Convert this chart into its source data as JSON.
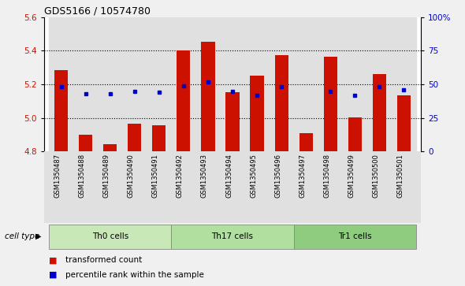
{
  "title": "GDS5166 / 10574780",
  "samples": [
    "GSM1350487",
    "GSM1350488",
    "GSM1350489",
    "GSM1350490",
    "GSM1350491",
    "GSM1350492",
    "GSM1350493",
    "GSM1350494",
    "GSM1350495",
    "GSM1350496",
    "GSM1350497",
    "GSM1350498",
    "GSM1350499",
    "GSM1350500",
    "GSM1350501"
  ],
  "bar_values": [
    5.285,
    4.9,
    4.845,
    4.965,
    4.955,
    5.4,
    5.455,
    5.155,
    5.25,
    5.375,
    4.91,
    5.365,
    5.005,
    5.26,
    5.135
  ],
  "dot_values": [
    48,
    43,
    43,
    45,
    44,
    49,
    52,
    45,
    42,
    48,
    null,
    45,
    42,
    48,
    46
  ],
  "ymin": 4.8,
  "ymax": 5.6,
  "yticks": [
    4.8,
    5.0,
    5.2,
    5.4,
    5.6
  ],
  "right_yticks": [
    0,
    25,
    50,
    75,
    100
  ],
  "bar_color": "#cc1100",
  "dot_color": "#0000cc",
  "bar_bottom": 4.8,
  "cell_groups": [
    {
      "label": "Th0 cells",
      "start": 0,
      "end": 5
    },
    {
      "label": "Th17 cells",
      "start": 5,
      "end": 10
    },
    {
      "label": "Tr1 cells",
      "start": 10,
      "end": 15
    }
  ],
  "cell_group_colors": [
    "#c8e8b8",
    "#b0dfa0",
    "#90cc80"
  ],
  "legend_labels": [
    "transformed count",
    "percentile rank within the sample"
  ],
  "legend_colors": [
    "#cc1100",
    "#0000cc"
  ],
  "cell_type_label": "cell type",
  "bg_color": "#f0f0f0",
  "plot_bg": "#ffffff",
  "col_bg": "#e0e0e0",
  "grid_yticks": [
    5.0,
    5.2,
    5.4
  ]
}
